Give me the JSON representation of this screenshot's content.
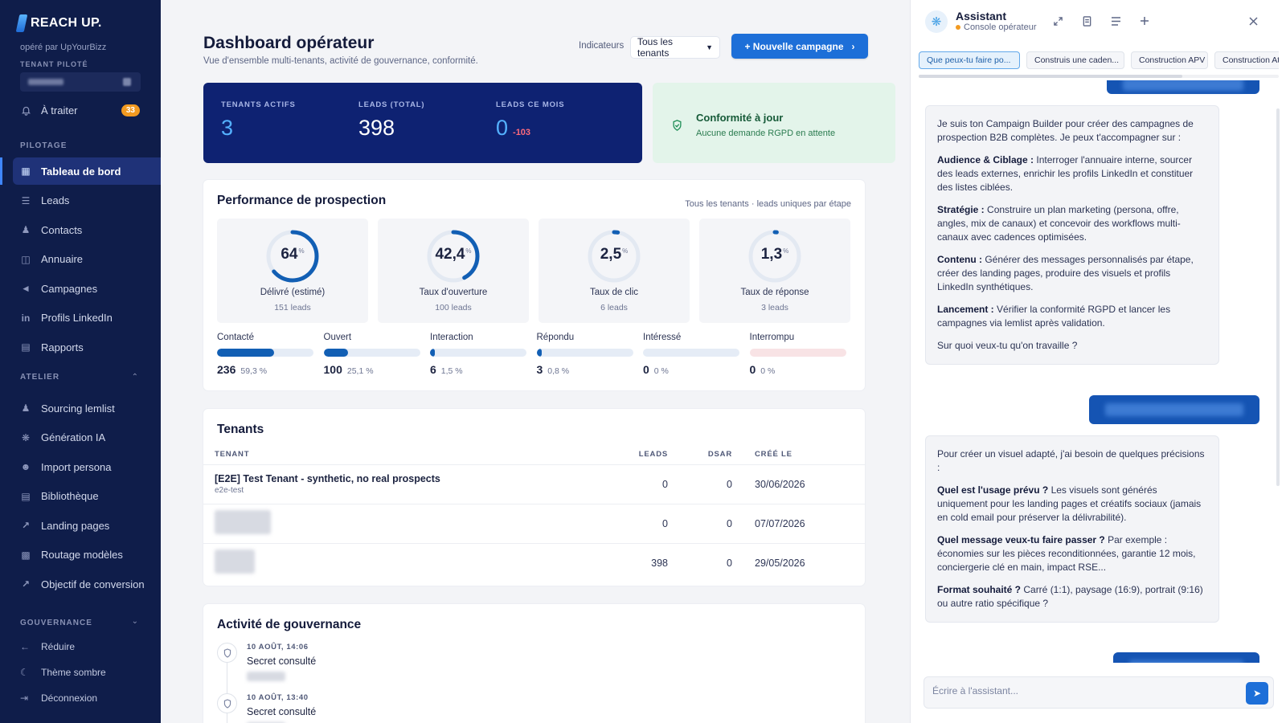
{
  "sidebar": {
    "brand": "REACH UP.",
    "operated_by": "opéré par UpYourBizz",
    "tenant_label": "TENANT PILOTÉ",
    "todo_label": "À traiter",
    "todo_count": "33",
    "pilotage_label": "PILOTAGE",
    "pilotage_items": [
      {
        "label": "Tableau de bord",
        "icon": "grid-icon"
      },
      {
        "label": "Leads",
        "icon": "list-icon"
      },
      {
        "label": "Contacts",
        "icon": "users-icon"
      },
      {
        "label": "Annuaire",
        "icon": "book-icon"
      },
      {
        "label": "Campagnes",
        "icon": "megaphone-icon"
      },
      {
        "label": "Profils LinkedIn",
        "icon": "linkedin-icon"
      },
      {
        "label": "Rapports",
        "icon": "file-icon"
      }
    ],
    "atelier_label": "ATELIER",
    "atelier_items": [
      {
        "label": "Sourcing lemlist",
        "icon": "users-icon"
      },
      {
        "label": "Génération IA",
        "icon": "sparkle-icon"
      },
      {
        "label": "Import persona",
        "icon": "user-icon"
      },
      {
        "label": "Bibliothèque",
        "icon": "file-icon"
      },
      {
        "label": "Landing pages",
        "icon": "external-link-icon"
      },
      {
        "label": "Routage modèles",
        "icon": "bar-chart-icon"
      },
      {
        "label": "Objectif de conversion",
        "icon": "external-link-icon"
      }
    ],
    "gouvernance_label": "GOUVERNANCE",
    "footer": {
      "reduce": "Réduire",
      "dark_theme": "Thème sombre",
      "logout": "Déconnexion"
    }
  },
  "header": {
    "title": "Dashboard opérateur",
    "subtitle": "Vue d'ensemble multi-tenants, activité de gouvernance, conformité.",
    "indicators_label": "Indicateurs",
    "tenant_select": "Tous les tenants",
    "new_campaign": "+ Nouvelle campagne"
  },
  "stats": {
    "active_tenants_label": "TENANTS ACTIFS",
    "active_tenants": "3",
    "leads_total_label": "LEADS (TOTAL)",
    "leads_total": "398",
    "leads_month_label": "LEADS CE MOIS",
    "leads_month": "0",
    "leads_month_delta": "-103"
  },
  "compliance": {
    "title": "Conformité à jour",
    "subtitle": "Aucune demande RGPD en attente"
  },
  "performance": {
    "title": "Performance de prospection",
    "note": "Tous les tenants · leads uniques par étape",
    "gauges": [
      {
        "value": "64",
        "pct": 64,
        "label": "Délivré (estimé)",
        "sub": "151 leads"
      },
      {
        "value": "42,4",
        "pct": 42.4,
        "label": "Taux d'ouverture",
        "sub": "100 leads"
      },
      {
        "value": "2,5",
        "pct": 2.5,
        "label": "Taux de clic",
        "sub": "6 leads"
      },
      {
        "value": "1,3",
        "pct": 1.3,
        "label": "Taux de réponse",
        "sub": "3 leads"
      }
    ],
    "percent_sign": "%",
    "stages": [
      {
        "name": "Contacté",
        "count": "236",
        "pct": "59,3 %",
        "fill": 59.3,
        "track": "#e5ecf6"
      },
      {
        "name": "Ouvert",
        "count": "100",
        "pct": "25,1 %",
        "fill": 25.1,
        "track": "#e5ecf6"
      },
      {
        "name": "Interaction",
        "count": "6",
        "pct": "1,5 %",
        "fill": 1.5,
        "track": "#e5ecf6"
      },
      {
        "name": "Répondu",
        "count": "3",
        "pct": "0,8 %",
        "fill": 0.8,
        "track": "#e5ecf6"
      },
      {
        "name": "Intéressé",
        "count": "0",
        "pct": "0 %",
        "fill": 0,
        "track": "#e5ecf6"
      },
      {
        "name": "Interrompu",
        "count": "0",
        "pct": "0 %",
        "fill": 0,
        "track": "#f8e3e5"
      }
    ]
  },
  "tenants": {
    "title": "Tenants",
    "columns": {
      "tenant": "TENANT",
      "leads": "LEADS",
      "dsar": "DSAR",
      "created": "CRÉÉ LE"
    },
    "rows": [
      {
        "name": "[E2E] Test Tenant - synthetic, no real prospects",
        "slug": "e2e-test",
        "leads": "0",
        "dsar": "0",
        "created": "30/06/2026"
      },
      {
        "name": "",
        "slug": "",
        "leads": "0",
        "dsar": "0",
        "created": "07/07/2026"
      },
      {
        "name": "",
        "slug": "",
        "leads": "398",
        "dsar": "0",
        "created": "29/05/2026"
      }
    ]
  },
  "governance": {
    "title": "Activité de gouvernance",
    "events": [
      {
        "when": "10 AOÛT, 14:06",
        "what": "Secret consulté"
      },
      {
        "when": "10 AOÛT, 13:40",
        "what": "Secret consulté"
      }
    ]
  },
  "assistant": {
    "title": "Assistant",
    "subtitle": "Console opérateur",
    "chips": [
      "Que peux-tu faire po...",
      "Construis une caden...",
      "Construction APV",
      "Construction Atel"
    ],
    "bot_message_1": {
      "intro": "Je suis ton Campaign Builder pour créer des campagnes de prospection B2B complètes. Je peux t'accompagner sur :",
      "items": [
        {
          "title": "Audience & Ciblage :",
          "text": " Interroger l'annuaire interne, sourcer des leads externes, enrichir les profils LinkedIn et constituer des listes ciblées."
        },
        {
          "title": "Stratégie :",
          "text": " Construire un plan marketing (persona, offre, angles, mix de canaux) et concevoir des workflows multi-canaux avec cadences optimisées."
        },
        {
          "title": "Contenu :",
          "text": " Générer des messages personnalisés par étape, créer des landing pages, produire des visuels et profils LinkedIn synthétiques."
        },
        {
          "title": "Lancement :",
          "text": " Vérifier la conformité RGPD et lancer les campagnes via lemlist après validation."
        }
      ],
      "outro": "Sur quoi veux-tu qu'on travaille ?"
    },
    "bot_message_2": {
      "intro": "Pour créer un visuel adapté, j'ai besoin de quelques précisions :",
      "items": [
        {
          "title": "Quel est l'usage prévu ?",
          "text": " Les visuels sont générés uniquement pour les landing pages et créatifs sociaux (jamais en cold email pour préserver la délivrabilité)."
        },
        {
          "title": "Quel message veux-tu faire passer ?",
          "text": " Par exemple : économies sur les pièces reconditionnées, garantie 12 mois, conciergerie clé en main, impact RSE..."
        },
        {
          "title": "Format souhaité ?",
          "text": " Carré (1:1), paysage (16:9), portrait (9:16) ou autre ratio spécifique ?"
        }
      ]
    },
    "composer_placeholder": "Écrire à l'assistant..."
  },
  "colors": {
    "sidebar_bg": "#0f1d4a",
    "accent": "#1d6fd8",
    "stat_card_bg": "#0e2272",
    "gauge_stroke": "#125fb4",
    "success_bg": "#e3f4ea",
    "badge": "#f29a21"
  }
}
